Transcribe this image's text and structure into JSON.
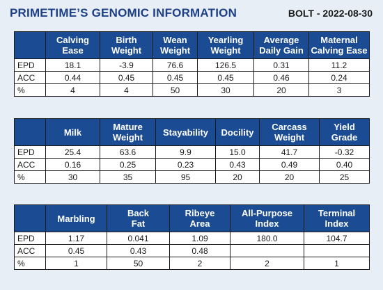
{
  "header": {
    "title": "PRIMETIME’S GENOMIC INFORMATION",
    "subtitle": "BOLT - 2022-08-30"
  },
  "tables": [
    {
      "columns": [
        [
          "Calving",
          "Ease"
        ],
        [
          "Birth",
          "Weight"
        ],
        [
          "Wean",
          "Weight"
        ],
        [
          "Yearling",
          "Weight"
        ],
        [
          "Average",
          "Daily Gain"
        ],
        [
          "Maternal",
          "Calving Ease"
        ]
      ],
      "rows": [
        {
          "label": "EPD",
          "values": [
            "18.1",
            "-3.9",
            "76.6",
            "126.5",
            "0.31",
            "11.2"
          ]
        },
        {
          "label": "ACC",
          "values": [
            "0.44",
            "0.45",
            "0.45",
            "0.45",
            "0.46",
            "0.24"
          ]
        },
        {
          "label": "%",
          "values": [
            "4",
            "4",
            "50",
            "30",
            "20",
            "3"
          ]
        }
      ]
    },
    {
      "columns": [
        [
          "",
          "Milk"
        ],
        [
          "Mature",
          "Weight"
        ],
        [
          "",
          "Stayability"
        ],
        [
          "",
          "Docility"
        ],
        [
          "Carcass",
          "Weight"
        ],
        [
          "Yield",
          "Grade"
        ]
      ],
      "rows": [
        {
          "label": "EPD",
          "values": [
            "25.4",
            "63.6",
            "9.9",
            "15.0",
            "41.7",
            "-0.32"
          ]
        },
        {
          "label": "ACC",
          "values": [
            "0.16",
            "0.25",
            "0.23",
            "0.43",
            "0.49",
            "0.40"
          ]
        },
        {
          "label": "%",
          "values": [
            "30",
            "35",
            "95",
            "20",
            "20",
            "25"
          ]
        }
      ]
    },
    {
      "columns": [
        [
          "",
          "Marbling"
        ],
        [
          "Back",
          "Fat"
        ],
        [
          "Ribeye",
          "Area"
        ],
        [
          "All-Purpose",
          "Index"
        ],
        [
          "Terminal",
          "Index"
        ]
      ],
      "rows": [
        {
          "label": "EPD",
          "values": [
            "1.17",
            "0.041",
            "1.09",
            "180.0",
            "104.7"
          ]
        },
        {
          "label": "ACC",
          "values": [
            "0.45",
            "0.43",
            "0.48",
            "",
            ""
          ]
        },
        {
          "label": "%",
          "values": [
            "1",
            "50",
            "2",
            "2",
            "1"
          ]
        }
      ]
    }
  ],
  "colors": {
    "title": "#1c3f86",
    "header_fill": "#1a4b93",
    "background": "#e7eef6"
  }
}
